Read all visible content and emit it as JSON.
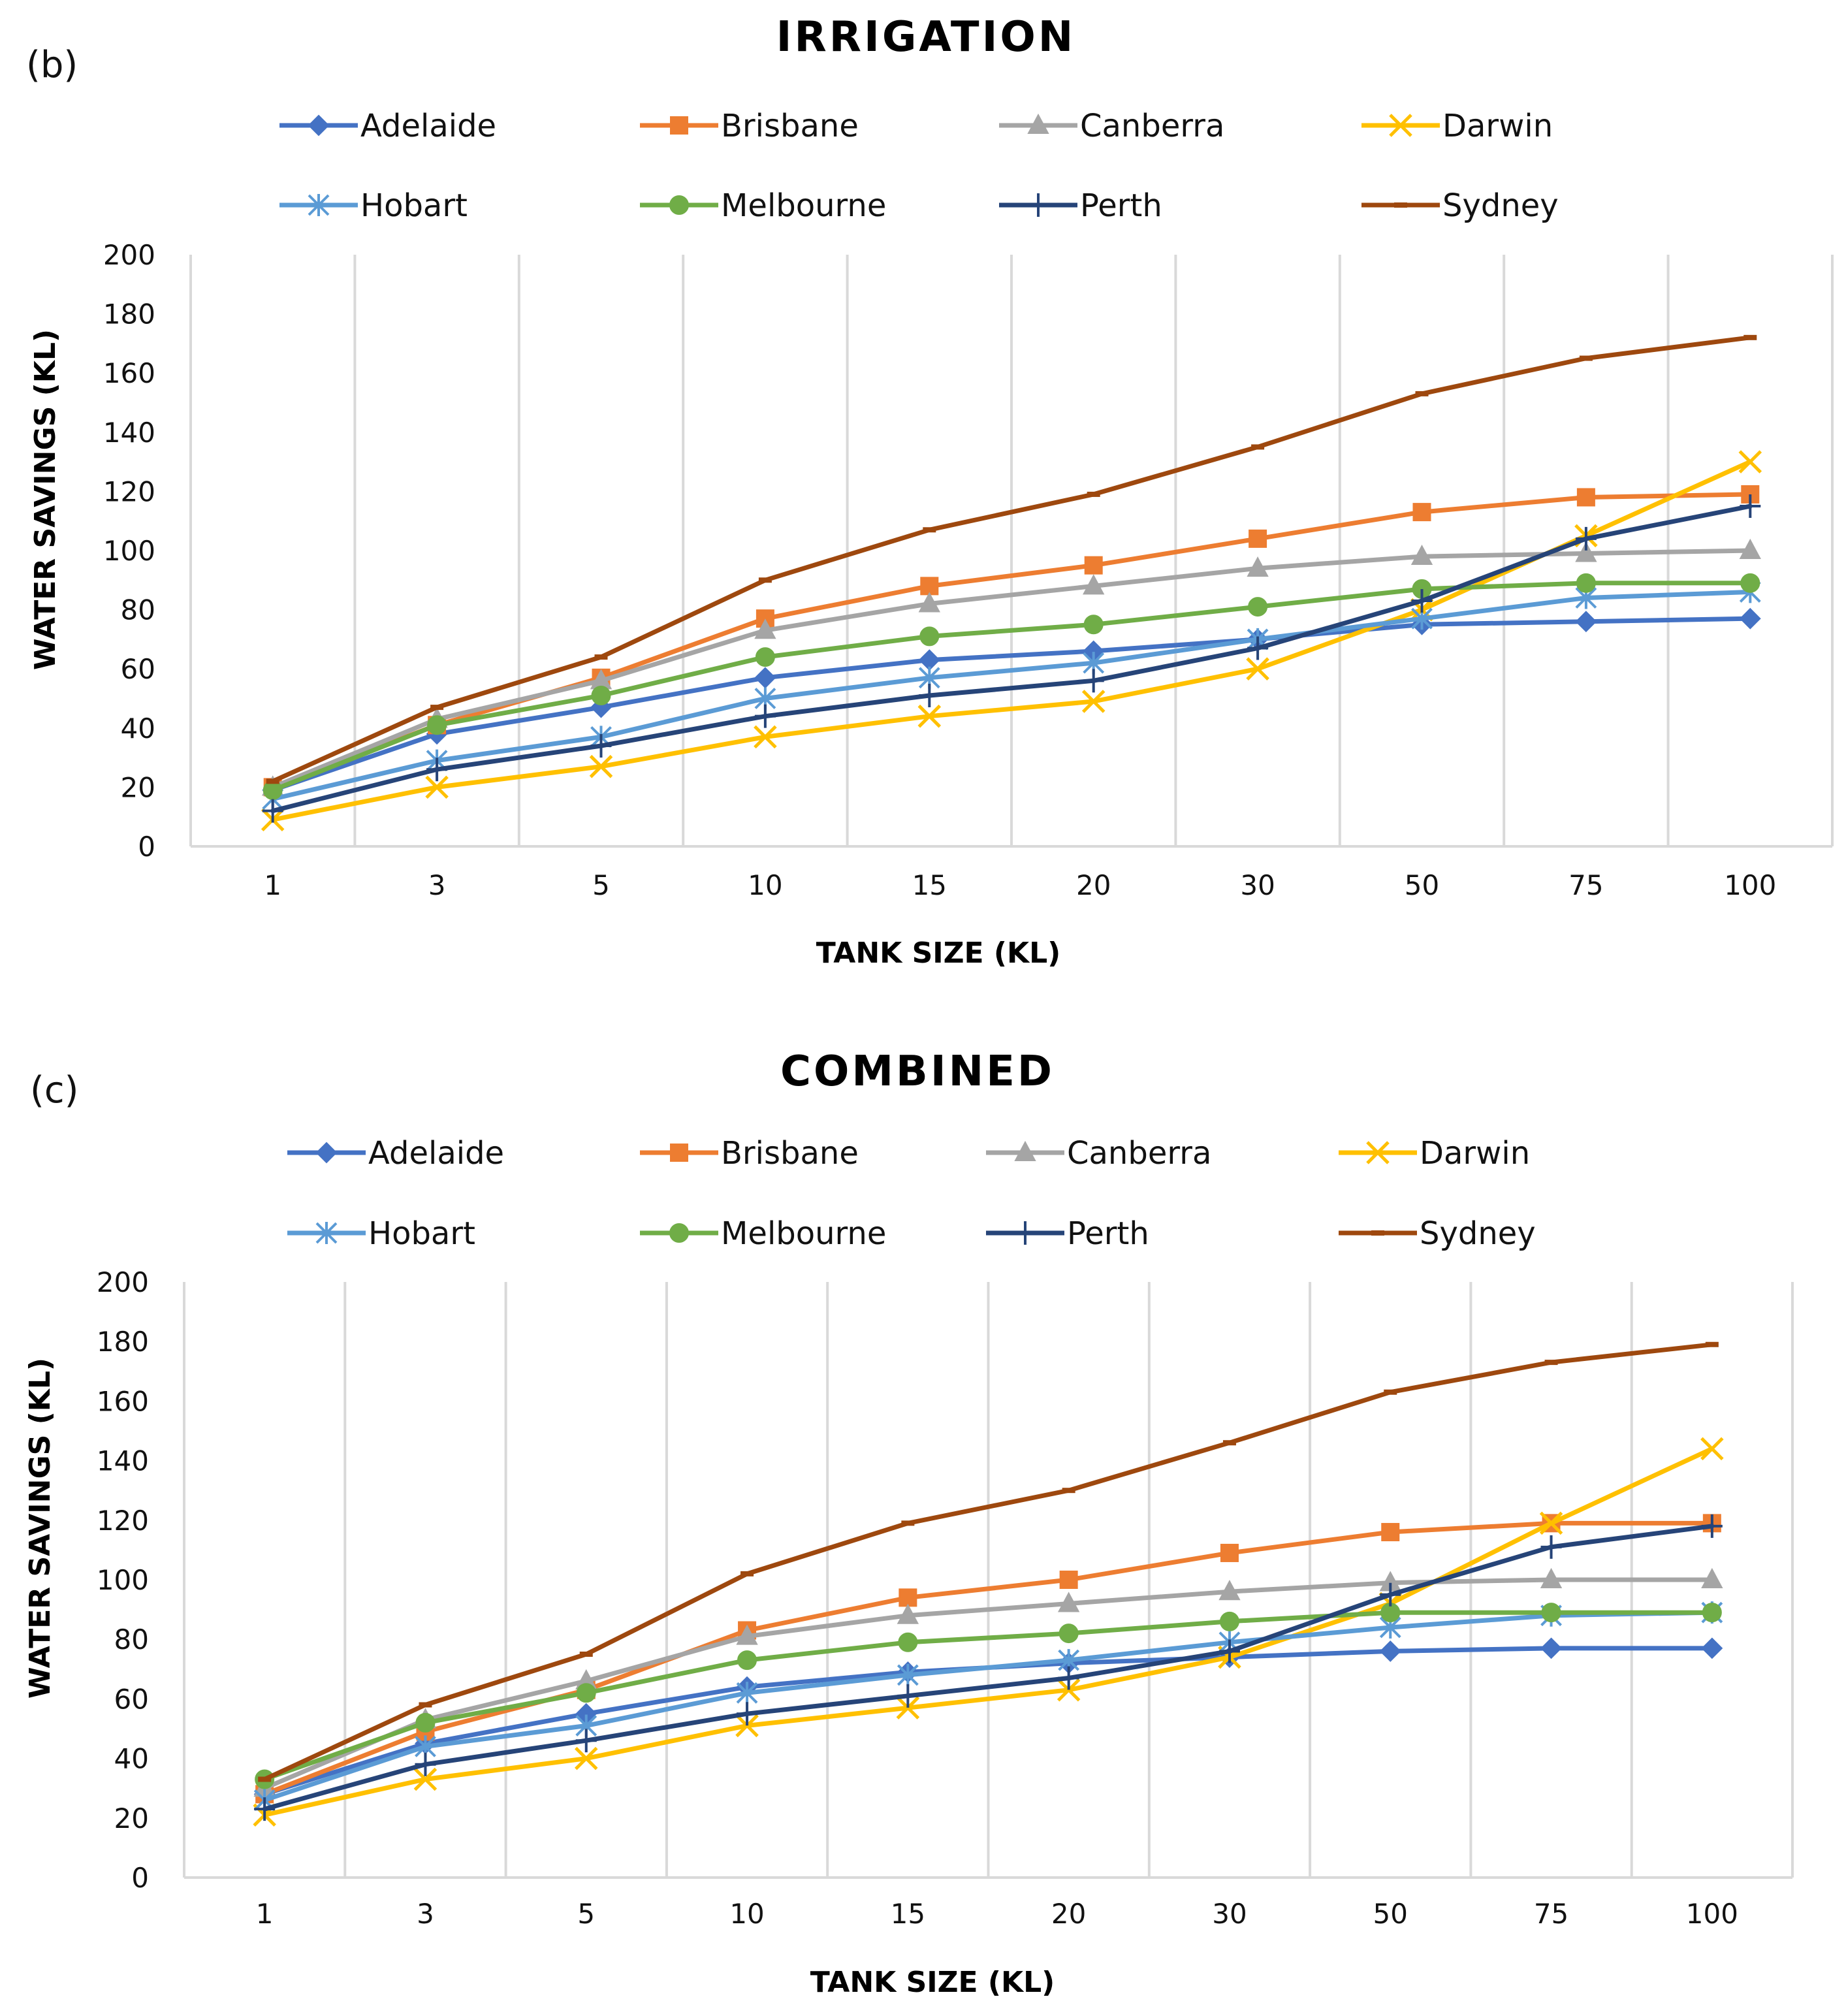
{
  "chart_data": [
    {
      "type": "line",
      "panel_label": "(b)",
      "title": "IRRIGATION",
      "xlabel": "TANK SIZE (KL)",
      "ylabel": "WATER  SAVINGS (KL)",
      "categories": [
        "1",
        "3",
        "5",
        "10",
        "15",
        "20",
        "30",
        "50",
        "75",
        "100"
      ],
      "ylim": [
        0,
        200
      ],
      "yticks": [
        0,
        20,
        40,
        60,
        80,
        100,
        120,
        140,
        160,
        180,
        200
      ],
      "legend_position": "top",
      "grid": "vertical",
      "series": [
        {
          "name": "Adelaide",
          "color": "#4472C4",
          "marker": "diamond",
          "values": [
            19,
            38,
            47,
            57,
            63,
            66,
            70,
            75,
            76,
            77
          ]
        },
        {
          "name": "Brisbane",
          "color": "#ED7D31",
          "marker": "square",
          "values": [
            20,
            41,
            57,
            77,
            88,
            95,
            104,
            113,
            118,
            119
          ]
        },
        {
          "name": "Canberra",
          "color": "#A5A5A5",
          "marker": "triangle",
          "values": [
            20,
            43,
            56,
            73,
            82,
            88,
            94,
            98,
            99,
            100
          ]
        },
        {
          "name": "Darwin",
          "color": "#FFC000",
          "marker": "x",
          "values": [
            9,
            20,
            27,
            37,
            44,
            49,
            60,
            80,
            105,
            130
          ]
        },
        {
          "name": "Hobart",
          "color": "#5B9BD5",
          "marker": "asterisk",
          "values": [
            16,
            29,
            37,
            50,
            57,
            62,
            70,
            77,
            84,
            86
          ]
        },
        {
          "name": "Melbourne",
          "color": "#70AD47",
          "marker": "circle",
          "values": [
            19,
            41,
            51,
            64,
            71,
            75,
            81,
            87,
            89,
            89
          ]
        },
        {
          "name": "Perth",
          "color": "#264478",
          "marker": "plus",
          "values": [
            12,
            26,
            34,
            44,
            51,
            56,
            67,
            83,
            104,
            115
          ]
        },
        {
          "name": "Sydney",
          "color": "#9E480E",
          "marker": "dash",
          "values": [
            22,
            47,
            64,
            90,
            107,
            119,
            135,
            153,
            165,
            172
          ]
        }
      ]
    },
    {
      "type": "line",
      "panel_label": "(c)",
      "title": "COMBINED",
      "xlabel": "TANK SIZE (KL)",
      "ylabel": "WATER  SAVINGS (KL)",
      "categories": [
        "1",
        "3",
        "5",
        "10",
        "15",
        "20",
        "30",
        "50",
        "75",
        "100"
      ],
      "ylim": [
        0,
        200
      ],
      "yticks": [
        0,
        20,
        40,
        60,
        80,
        100,
        120,
        140,
        160,
        180,
        200
      ],
      "legend_position": "top",
      "grid": "vertical",
      "series": [
        {
          "name": "Adelaide",
          "color": "#4472C4",
          "marker": "diamond",
          "values": [
            28,
            45,
            55,
            64,
            69,
            72,
            74,
            76,
            77,
            77
          ]
        },
        {
          "name": "Brisbane",
          "color": "#ED7D31",
          "marker": "square",
          "values": [
            28,
            49,
            63,
            83,
            94,
            100,
            109,
            116,
            119,
            119
          ]
        },
        {
          "name": "Canberra",
          "color": "#A5A5A5",
          "marker": "triangle",
          "values": [
            30,
            53,
            66,
            81,
            88,
            92,
            96,
            99,
            100,
            100
          ]
        },
        {
          "name": "Darwin",
          "color": "#FFC000",
          "marker": "x",
          "values": [
            21,
            33,
            40,
            51,
            57,
            63,
            74,
            92,
            119,
            144
          ]
        },
        {
          "name": "Hobart",
          "color": "#5B9BD5",
          "marker": "asterisk",
          "values": [
            26,
            44,
            51,
            62,
            68,
            73,
            79,
            84,
            88,
            89
          ]
        },
        {
          "name": "Melbourne",
          "color": "#70AD47",
          "marker": "circle",
          "values": [
            33,
            52,
            62,
            73,
            79,
            82,
            86,
            89,
            89,
            89
          ]
        },
        {
          "name": "Perth",
          "color": "#264478",
          "marker": "plus",
          "values": [
            23,
            38,
            46,
            55,
            61,
            67,
            76,
            95,
            111,
            118
          ]
        },
        {
          "name": "Sydney",
          "color": "#9E480E",
          "marker": "dash",
          "values": [
            33,
            58,
            75,
            102,
            119,
            130,
            146,
            163,
            173,
            179
          ]
        }
      ]
    }
  ]
}
